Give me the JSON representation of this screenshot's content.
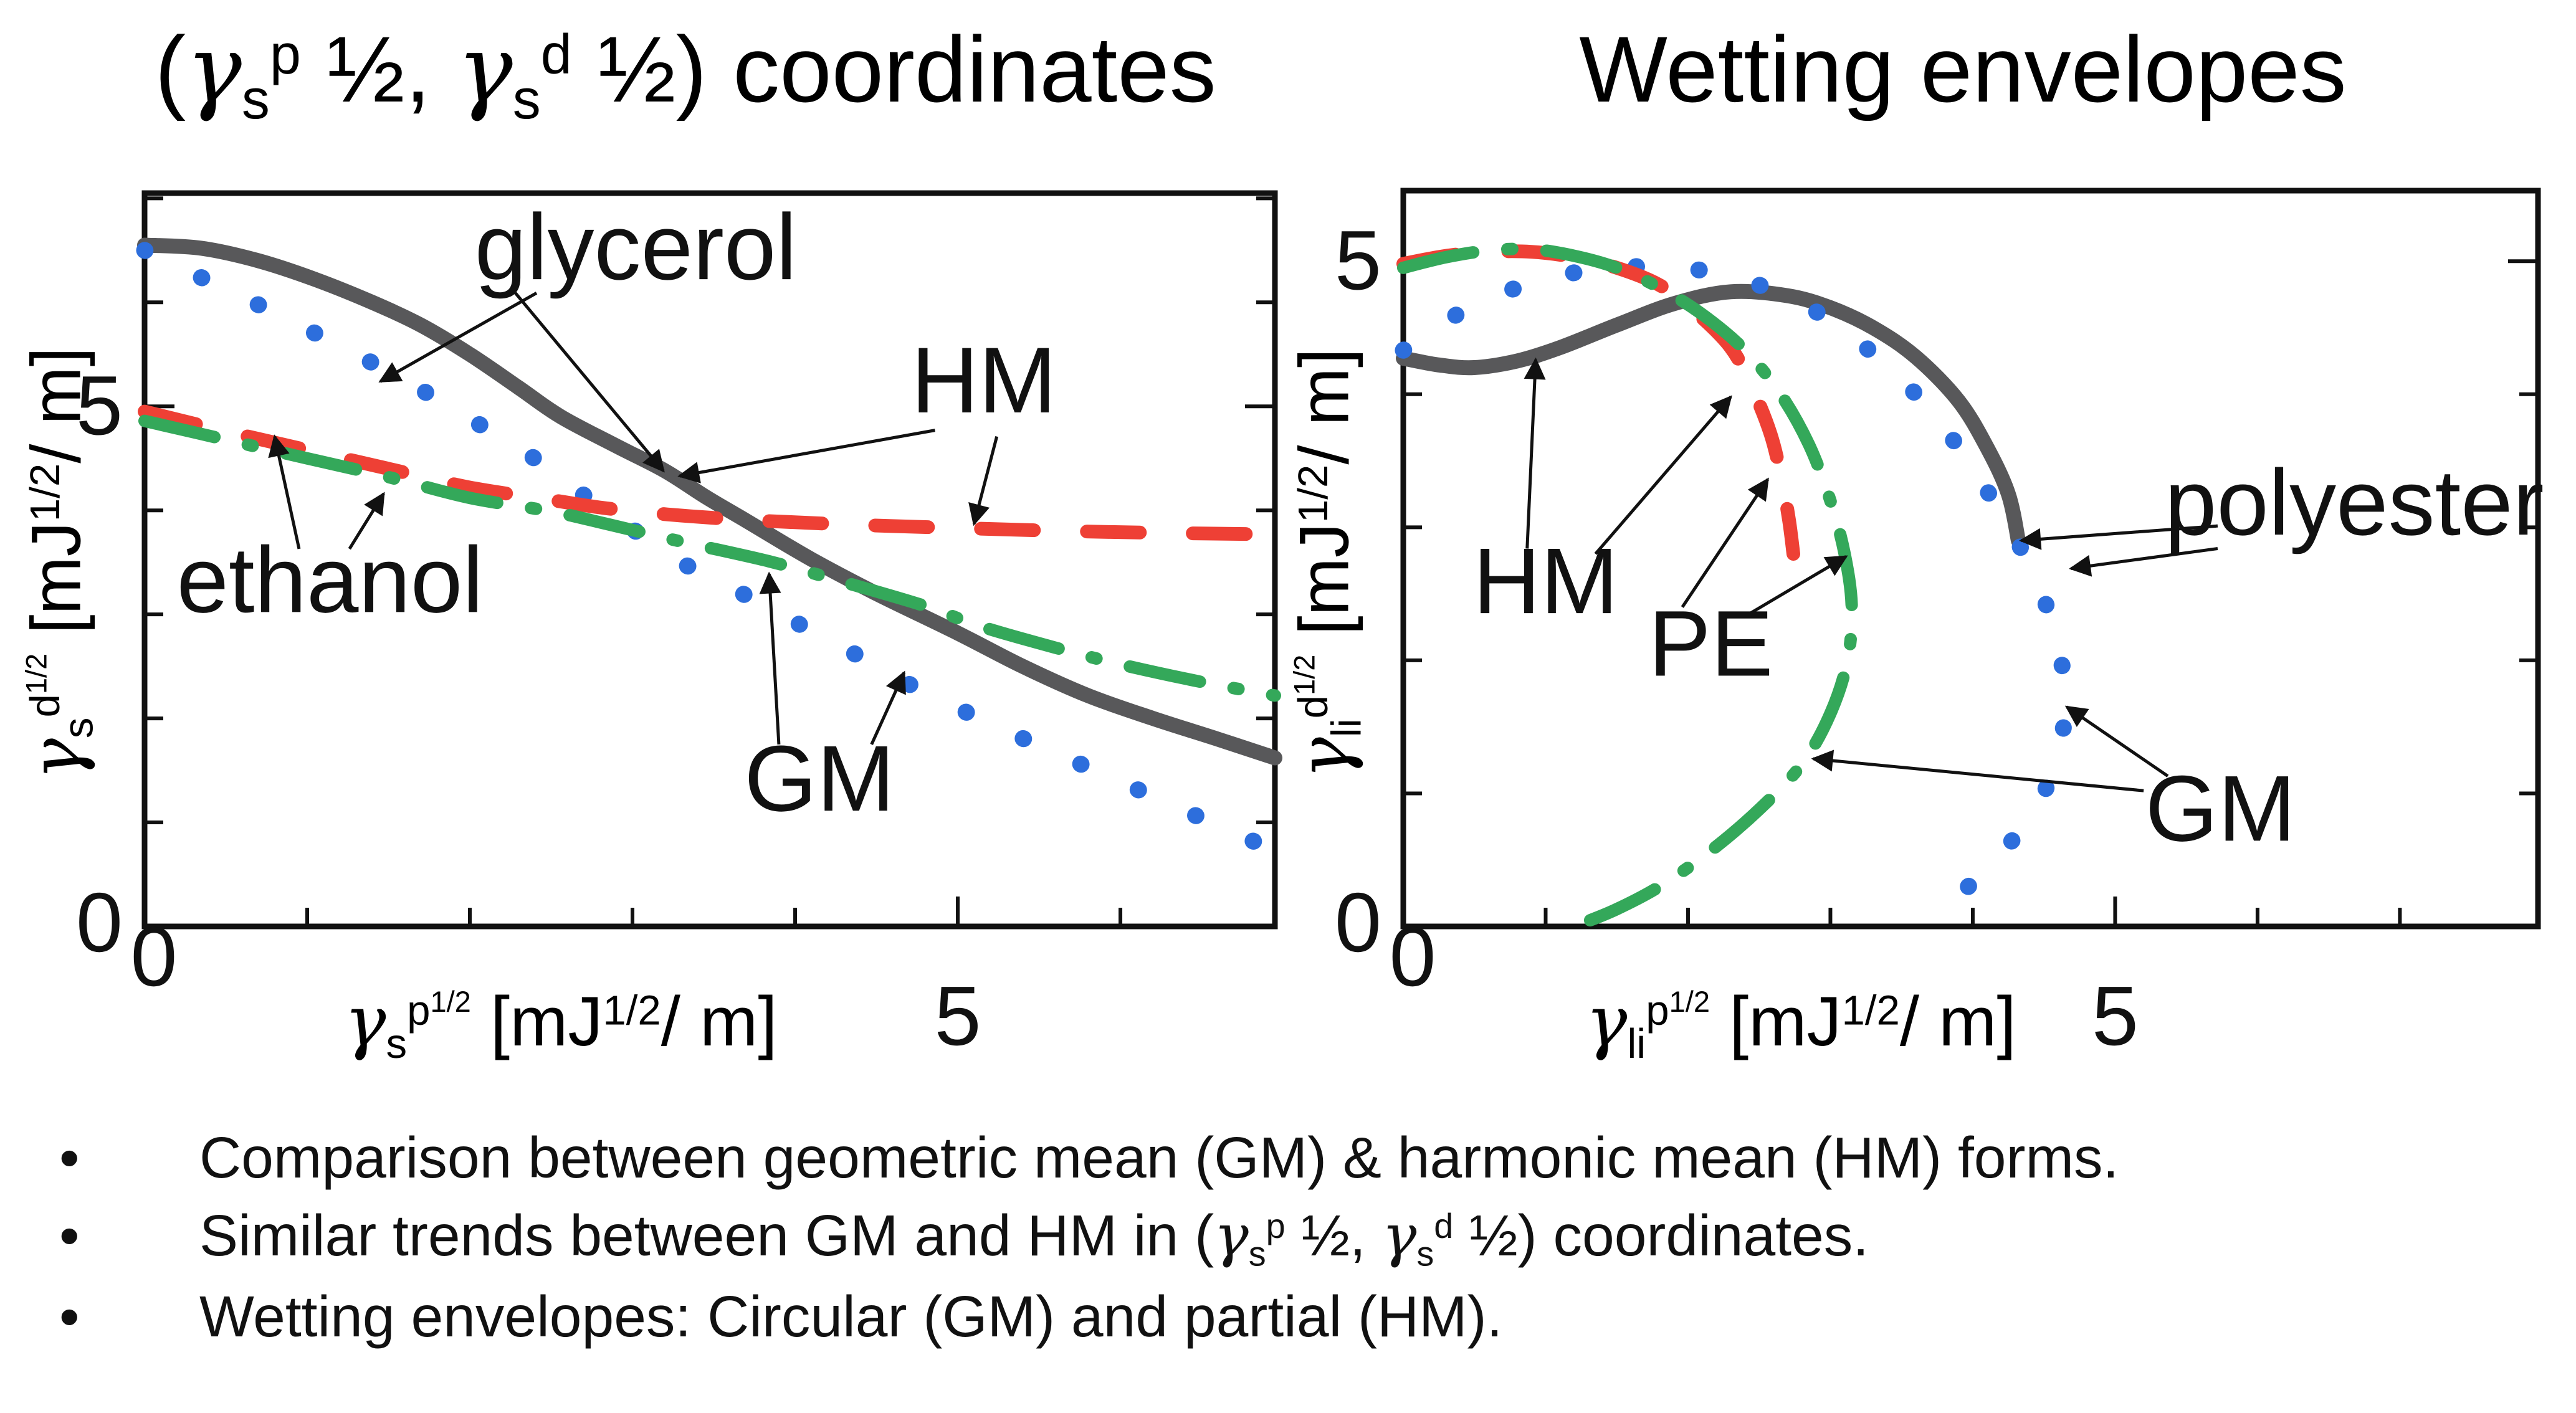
{
  "slide": {
    "left_title_tokens": [
      {
        "s": "n",
        "v": "("
      },
      {
        "s": "g",
        "v": "γ"
      },
      {
        "s": "sub",
        "v": "s"
      },
      {
        "s": "sup",
        "v": "p"
      },
      {
        "s": "n",
        "v": " ½, "
      },
      {
        "s": "g",
        "v": "γ"
      },
      {
        "s": "sub",
        "v": "s"
      },
      {
        "s": "sup",
        "v": "d"
      },
      {
        "s": "n",
        "v": " ½) coordinates"
      }
    ],
    "right_title": "Wetting envelopes",
    "bullets": [
      [
        {
          "s": "n",
          "v": "Comparison between geometric mean (GM) & harmonic mean (HM) forms."
        }
      ],
      [
        {
          "s": "n",
          "v": "Similar trends between GM and HM in ("
        },
        {
          "s": "g",
          "v": "γ"
        },
        {
          "s": "sub",
          "v": "s"
        },
        {
          "s": "sup",
          "v": "p"
        },
        {
          "s": "n",
          "v": " ½, "
        },
        {
          "s": "g",
          "v": "γ"
        },
        {
          "s": "sub",
          "v": "s"
        },
        {
          "s": "sup",
          "v": "d"
        },
        {
          "s": "n",
          "v": " ½) coordinates."
        }
      ],
      [
        {
          "s": "n",
          "v": "Wetting envelopes: Circular (GM) and partial (HM)."
        }
      ]
    ],
    "bullet_glyph": "•"
  },
  "chart_data": [
    {
      "type": "line",
      "title": "(γs p ½, γs d ½) coordinates",
      "xlim": [
        0,
        6.95
      ],
      "ylim": [
        0,
        7.05
      ],
      "grid": false,
      "xticks": [
        {
          "v": 0,
          "label": "0"
        },
        {
          "v": 5,
          "label": "5"
        }
      ],
      "yticks": [
        {
          "v": 0,
          "label": "0"
        },
        {
          "v": 5,
          "label": "5"
        }
      ],
      "minor_tick_step": 1,
      "xlabel_tokens": [
        {
          "s": "g",
          "v": "γ"
        },
        {
          "s": "sub",
          "v": "s"
        },
        {
          "s": "sup",
          "v": "p"
        },
        {
          "s": "ss",
          "v": "1/2"
        },
        {
          "s": "n",
          "v": " [mJ"
        },
        {
          "s": "sup",
          "v": "1/2"
        },
        {
          "s": "n",
          "v": "/ m]"
        }
      ],
      "ylabel_tokens": [
        {
          "s": "g",
          "v": "γ"
        },
        {
          "s": "sub",
          "v": "s"
        },
        {
          "s": "sup",
          "v": "d"
        },
        {
          "s": "ss",
          "v": "1/2"
        },
        {
          "s": "n",
          "v": " [mJ"
        },
        {
          "s": "sup",
          "v": "1/2"
        },
        {
          "s": "n",
          "v": "/ m]"
        }
      ],
      "series": [
        {
          "name": "glycerol-HM",
          "color": "#58585a",
          "style": "solid",
          "points": [
            [
              0,
              6.55
            ],
            [
              0.35,
              6.52
            ],
            [
              0.7,
              6.4
            ],
            [
              1.05,
              6.22
            ],
            [
              1.4,
              6.0
            ],
            [
              1.7,
              5.78
            ],
            [
              2.0,
              5.5
            ],
            [
              2.3,
              5.18
            ],
            [
              2.56,
              4.9
            ],
            [
              2.9,
              4.62
            ],
            [
              3.2,
              4.38
            ],
            [
              3.45,
              4.13
            ],
            [
              3.7,
              3.9
            ],
            [
              4.1,
              3.53
            ],
            [
              4.5,
              3.2
            ],
            [
              5.0,
              2.82
            ],
            [
              5.4,
              2.5
            ],
            [
              5.8,
              2.22
            ],
            [
              6.2,
              2.0
            ],
            [
              6.6,
              1.8
            ],
            [
              6.95,
              1.62
            ]
          ]
        },
        {
          "name": "glycerol-GM",
          "color": "#2d6edc",
          "style": "dotted",
          "points": [
            [
              0,
              6.5
            ],
            [
              0.4,
              6.2
            ],
            [
              0.8,
              5.9
            ],
            [
              1.2,
              5.58
            ],
            [
              1.6,
              5.25
            ],
            [
              2.0,
              4.88
            ],
            [
              2.35,
              4.55
            ],
            [
              2.67,
              4.18
            ],
            [
              3.0,
              3.82
            ],
            [
              3.3,
              3.5
            ],
            [
              3.7,
              3.18
            ],
            [
              4.15,
              2.8
            ],
            [
              4.45,
              2.55
            ],
            [
              4.7,
              2.33
            ],
            [
              5.2,
              1.95
            ],
            [
              5.7,
              1.6
            ],
            [
              6.2,
              1.25
            ],
            [
              6.7,
              0.9
            ],
            [
              6.95,
              0.73
            ]
          ]
        },
        {
          "name": "ethanol-HM",
          "color": "#ee4035",
          "style": "dashed",
          "points": [
            [
              0,
              4.95
            ],
            [
              0.5,
              4.76
            ],
            [
              1.0,
              4.58
            ],
            [
              1.5,
              4.4
            ],
            [
              2.0,
              4.22
            ],
            [
              2.5,
              4.1
            ],
            [
              2.84,
              4.02
            ],
            [
              3.3,
              3.95
            ],
            [
              3.8,
              3.9
            ],
            [
              4.4,
              3.86
            ],
            [
              5.0,
              3.83
            ],
            [
              5.7,
              3.8
            ],
            [
              6.4,
              3.78
            ],
            [
              6.95,
              3.77
            ]
          ]
        },
        {
          "name": "ethanol-GM",
          "color": "#34a85a",
          "style": "dashdot",
          "points": [
            [
              0,
              4.86
            ],
            [
              0.5,
              4.68
            ],
            [
              1.0,
              4.5
            ],
            [
              1.5,
              4.32
            ],
            [
              2.0,
              4.12
            ],
            [
              2.5,
              3.99
            ],
            [
              2.84,
              3.87
            ],
            [
              3.3,
              3.7
            ],
            [
              3.84,
              3.51
            ],
            [
              4.3,
              3.31
            ],
            [
              4.8,
              3.08
            ],
            [
              5.13,
              2.89
            ],
            [
              5.6,
              2.68
            ],
            [
              6.0,
              2.52
            ],
            [
              6.5,
              2.35
            ],
            [
              6.95,
              2.22
            ]
          ]
        }
      ],
      "annotations": [
        {
          "label": "glycerol",
          "x": 3.02,
          "y": 6.46,
          "arrows": [
            {
              "from": [
                2.41,
                6.09
              ],
              "to": [
                1.45,
                5.24
              ]
            },
            {
              "from": [
                2.28,
                6.09
              ],
              "to": [
                3.19,
                4.38
              ]
            }
          ]
        },
        {
          "label": "HM",
          "x": 5.16,
          "y": 5.18,
          "arrows": [
            {
              "from": [
                4.86,
                4.77
              ],
              "to": [
                3.29,
                4.33
              ]
            },
            {
              "from": [
                5.24,
                4.71
              ],
              "to": [
                5.1,
                3.87
              ]
            }
          ]
        },
        {
          "label": "ethanol",
          "x": 1.14,
          "y": 3.26,
          "arrows": [
            {
              "from": [
                0.95,
                3.63
              ],
              "to": [
                0.8,
                4.71
              ]
            },
            {
              "from": [
                1.26,
                3.63
              ],
              "to": [
                1.47,
                4.16
              ]
            }
          ]
        },
        {
          "label": "GM",
          "x": 4.15,
          "y": 1.35,
          "arrows": [
            {
              "from": [
                3.9,
                1.75
              ],
              "to": [
                3.84,
                3.39
              ]
            },
            {
              "from": [
                4.47,
                1.75
              ],
              "to": [
                4.67,
                2.44
              ]
            }
          ]
        }
      ]
    },
    {
      "type": "line",
      "title": "Wetting envelopes",
      "xlim": [
        0,
        7.97
      ],
      "ylim": [
        0,
        5.53
      ],
      "grid": false,
      "xticks": [
        {
          "v": 0,
          "label": "0"
        },
        {
          "v": 5,
          "label": "5"
        }
      ],
      "yticks": [
        {
          "v": 0,
          "label": "0"
        },
        {
          "v": 5,
          "label": "5"
        }
      ],
      "minor_tick_step": 1,
      "xlabel_tokens": [
        {
          "s": "g",
          "v": "γ"
        },
        {
          "s": "sub",
          "v": "li"
        },
        {
          "s": "sup",
          "v": "p"
        },
        {
          "s": "ss",
          "v": "1/2"
        },
        {
          "s": "n",
          "v": " [mJ"
        },
        {
          "s": "sup",
          "v": "1/2"
        },
        {
          "s": "n",
          "v": "/ m]"
        }
      ],
      "ylabel_tokens": [
        {
          "s": "g",
          "v": "γ"
        },
        {
          "s": "sub",
          "v": "li"
        },
        {
          "s": "sup",
          "v": "d"
        },
        {
          "s": "ss",
          "v": "1/2"
        },
        {
          "s": "n",
          "v": " [mJ"
        },
        {
          "s": "sup",
          "v": "1/2"
        },
        {
          "s": "n",
          "v": "/ m]"
        }
      ],
      "series": [
        {
          "name": "polyester-HM",
          "color": "#58585a",
          "style": "solid",
          "points": [
            [
              0,
              4.27
            ],
            [
              0.25,
              4.22
            ],
            [
              0.5,
              4.2
            ],
            [
              0.8,
              4.25
            ],
            [
              1.1,
              4.35
            ],
            [
              1.5,
              4.52
            ],
            [
              1.9,
              4.68
            ],
            [
              2.3,
              4.77
            ],
            [
              2.7,
              4.74
            ],
            [
              3.0,
              4.65
            ],
            [
              3.3,
              4.5
            ],
            [
              3.6,
              4.28
            ],
            [
              3.9,
              3.95
            ],
            [
              4.1,
              3.6
            ],
            [
              4.25,
              3.25
            ],
            [
              4.32,
              2.9
            ]
          ]
        },
        {
          "name": "polyester-GM",
          "color": "#2d6edc",
          "style": "dotted",
          "points": [
            [
              0,
              4.33
            ],
            [
              0.3,
              4.55
            ],
            [
              0.6,
              4.72
            ],
            [
              0.95,
              4.85
            ],
            [
              1.3,
              4.93
            ],
            [
              1.7,
              4.96
            ],
            [
              2.1,
              4.93
            ],
            [
              2.5,
              4.82
            ],
            [
              2.9,
              4.62
            ],
            [
              3.25,
              4.35
            ],
            [
              3.6,
              4.0
            ],
            [
              3.9,
              3.6
            ],
            [
              4.2,
              3.1
            ],
            [
              4.45,
              2.6
            ],
            [
              4.6,
              2.1
            ],
            [
              4.65,
              1.7
            ],
            [
              4.6,
              1.3
            ],
            [
              4.45,
              0.9
            ],
            [
              4.2,
              0.55
            ],
            [
              3.95,
              0.28
            ],
            [
              3.7,
              0.02
            ]
          ]
        },
        {
          "name": "PE-HM",
          "color": "#ee4035",
          "style": "dashed",
          "points": [
            [
              0,
              4.98
            ],
            [
              0.3,
              5.04
            ],
            [
              0.6,
              5.07
            ],
            [
              0.9,
              5.07
            ],
            [
              1.2,
              5.03
            ],
            [
              1.5,
              4.95
            ],
            [
              1.8,
              4.82
            ],
            [
              2.05,
              4.62
            ],
            [
              2.3,
              4.35
            ],
            [
              2.45,
              4.05
            ],
            [
              2.58,
              3.7
            ],
            [
              2.66,
              3.35
            ],
            [
              2.71,
              3.05
            ],
            [
              2.74,
              2.8
            ]
          ]
        },
        {
          "name": "PE-GM",
          "color": "#34a85a",
          "style": "dashdot",
          "points": [
            [
              0,
              4.95
            ],
            [
              0.3,
              5.03
            ],
            [
              0.6,
              5.08
            ],
            [
              0.9,
              5.09
            ],
            [
              1.2,
              5.04
            ],
            [
              1.5,
              4.95
            ],
            [
              1.8,
              4.8
            ],
            [
              2.1,
              4.6
            ],
            [
              2.4,
              4.33
            ],
            [
              2.65,
              4.0
            ],
            [
              2.85,
              3.62
            ],
            [
              3.0,
              3.2
            ],
            [
              3.1,
              2.8
            ],
            [
              3.15,
              2.4
            ],
            [
              3.12,
              2.0
            ],
            [
              3.0,
              1.6
            ],
            [
              2.8,
              1.22
            ],
            [
              2.5,
              0.88
            ],
            [
              2.15,
              0.56
            ],
            [
              1.8,
              0.3
            ],
            [
              1.5,
              0.13
            ],
            [
              1.25,
              0.02
            ]
          ]
        }
      ],
      "annotations": [
        {
          "label": "HM",
          "x": 1.0,
          "y": 2.54,
          "arrows": [
            {
              "from": [
                0.87,
                2.84
              ],
              "to": [
                0.93,
                4.26
              ]
            },
            {
              "from": [
                1.35,
                2.8
              ],
              "to": [
                2.3,
                3.98
              ]
            }
          ]
        },
        {
          "label": "PE",
          "x": 2.16,
          "y": 2.07,
          "arrows": [
            {
              "from": [
                1.96,
                2.4
              ],
              "to": [
                2.56,
                3.36
              ]
            },
            {
              "from": [
                2.4,
                2.33
              ],
              "to": [
                3.11,
                2.78
              ]
            }
          ]
        },
        {
          "label": "polyester",
          "x": 6.68,
          "y": 3.13,
          "arrows": [
            {
              "from": [
                5.72,
                3.01
              ],
              "to": [
                4.34,
                2.9
              ]
            },
            {
              "from": [
                5.72,
                2.84
              ],
              "to": [
                4.69,
                2.69
              ]
            }
          ]
        },
        {
          "label": "GM",
          "x": 5.74,
          "y": 0.83,
          "arrows": [
            {
              "from": [
                5.2,
                1.02
              ],
              "to": [
                2.88,
                1.26
              ]
            },
            {
              "from": [
                5.37,
                1.13
              ],
              "to": [
                4.66,
                1.65
              ]
            }
          ]
        }
      ]
    }
  ]
}
